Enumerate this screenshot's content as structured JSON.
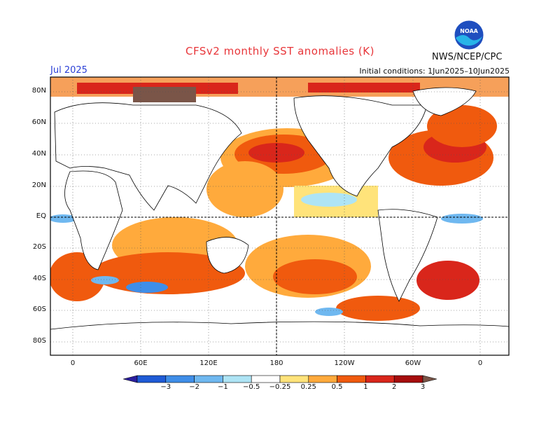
{
  "header": {
    "title": "CFSv2 monthly SST anomalies (K)",
    "month": "Jul 2025",
    "agency": "NWS/NCEP/CPC",
    "initial_conditions": "Initial conditions: 1Jun2025–10Jun2025",
    "logo_text": "NOAA"
  },
  "map": {
    "lat_labels": [
      "80N",
      "60N",
      "40N",
      "20N",
      "EQ",
      "20S",
      "40S",
      "60S",
      "80S"
    ],
    "lon_labels": [
      "0",
      "60E",
      "120E",
      "180",
      "120W",
      "60W",
      "0"
    ],
    "reference_lines": [
      "equator",
      "dateline"
    ]
  },
  "colorbar": {
    "ticks": [
      "−3",
      "−2",
      "−1",
      "−0.5",
      "−0.25",
      "0.25",
      "0.5",
      "1",
      "2",
      "3"
    ],
    "colors": [
      "#2b1e9e",
      "#1f5bd6",
      "#3f8ee8",
      "#6fb8f0",
      "#aee4f5",
      "#ffffff",
      "#ffe37a",
      "#ffaa3c",
      "#f05a0e",
      "#d9261b",
      "#a60d0d",
      "#7a5548"
    ]
  }
}
